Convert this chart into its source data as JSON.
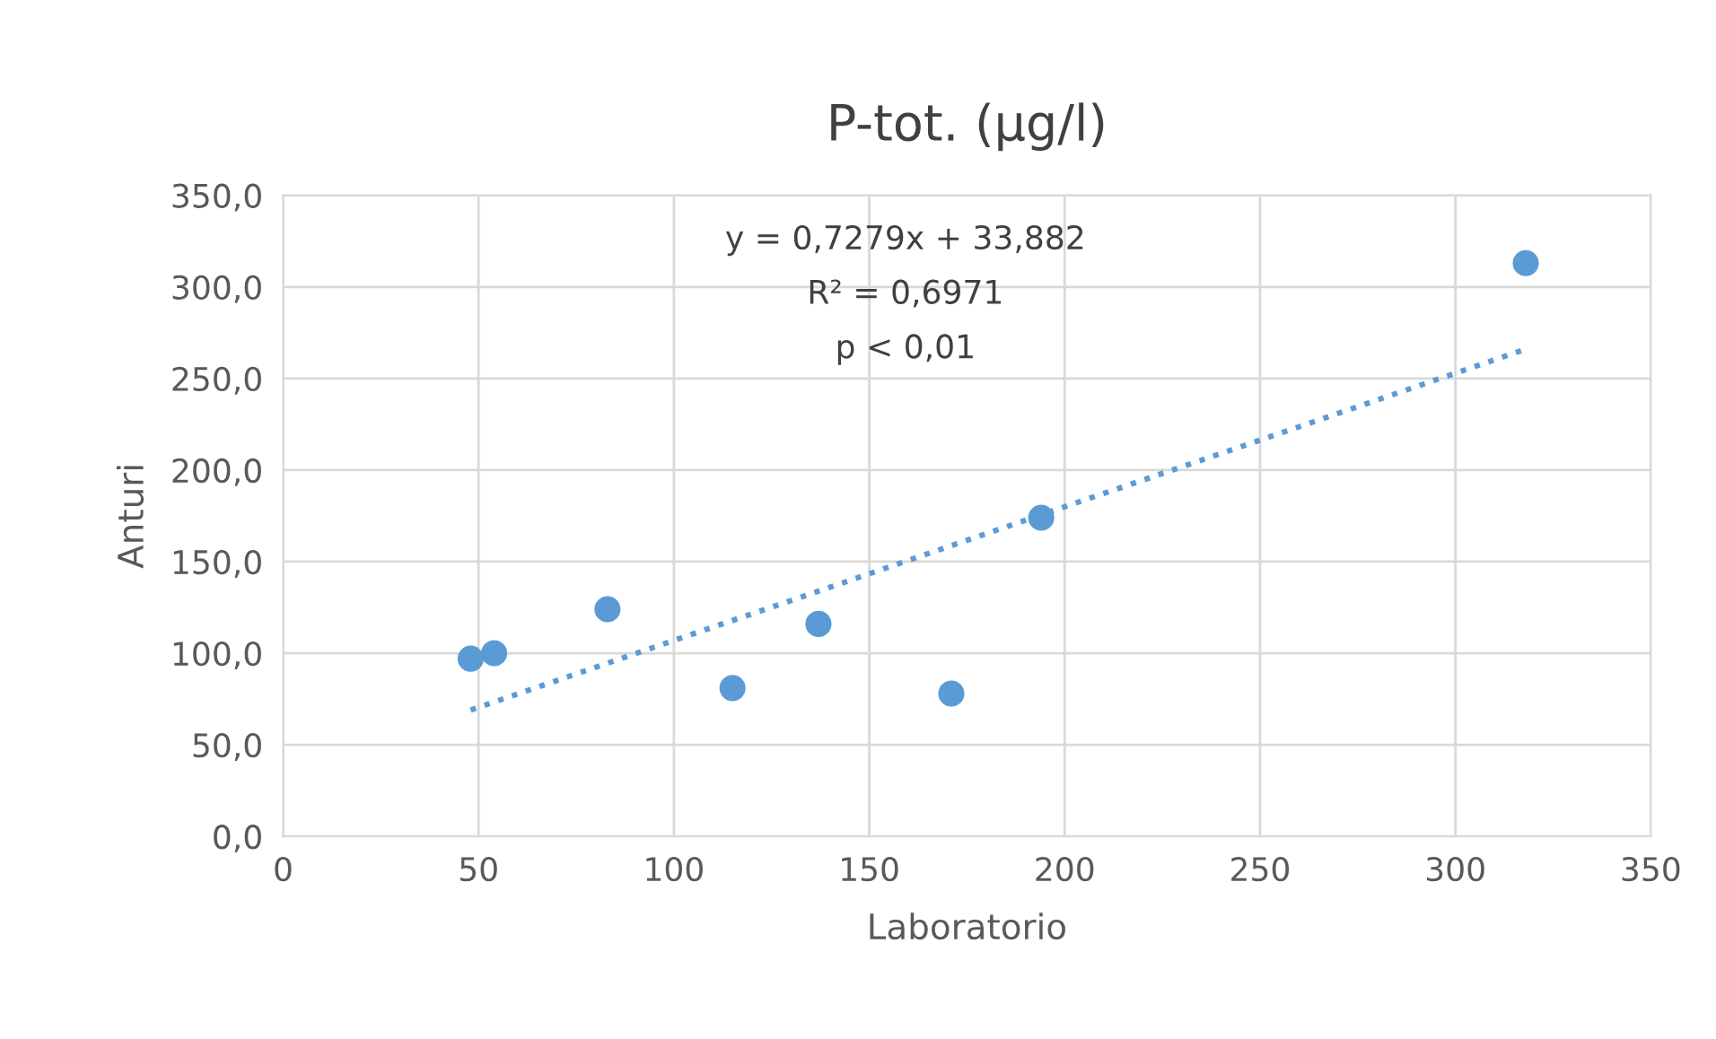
{
  "chart_data": {
    "type": "scatter",
    "title": "P-tot. (µg/l)",
    "xlabel": "Laboratorio",
    "ylabel": "Anturi",
    "xlim": [
      0,
      350
    ],
    "xticks": [
      0,
      50,
      100,
      150,
      200,
      250,
      300,
      350
    ],
    "ylim": [
      0,
      350
    ],
    "yticks": [
      {
        "value": 0,
        "label": "0,0"
      },
      {
        "value": 50,
        "label": "50,0"
      },
      {
        "value": 100,
        "label": "100,0"
      },
      {
        "value": 150,
        "label": "150,0"
      },
      {
        "value": 200,
        "label": "200,0"
      },
      {
        "value": 250,
        "label": "250,0"
      },
      {
        "value": 300,
        "label": "300,0"
      },
      {
        "value": 350,
        "label": "350,0"
      }
    ],
    "grid": true,
    "legend": false,
    "marker": "circle",
    "series": [
      {
        "color": "#5b9bd5",
        "x": [
          48,
          54,
          83,
          115,
          137,
          171,
          194,
          318
        ],
        "values": [
          97,
          100,
          124,
          81,
          116,
          78,
          174,
          313
        ]
      },
      {
        "type": "line",
        "color": "#5b9bd5",
        "line_style": "dotted",
        "marker": "none",
        "x": [
          48,
          318
        ],
        "values": [
          69,
          266
        ]
      }
    ],
    "annotations": [
      "y = 0,7279x + 33,882",
      "R² = 0,6971",
      "p < 0,01"
    ]
  }
}
